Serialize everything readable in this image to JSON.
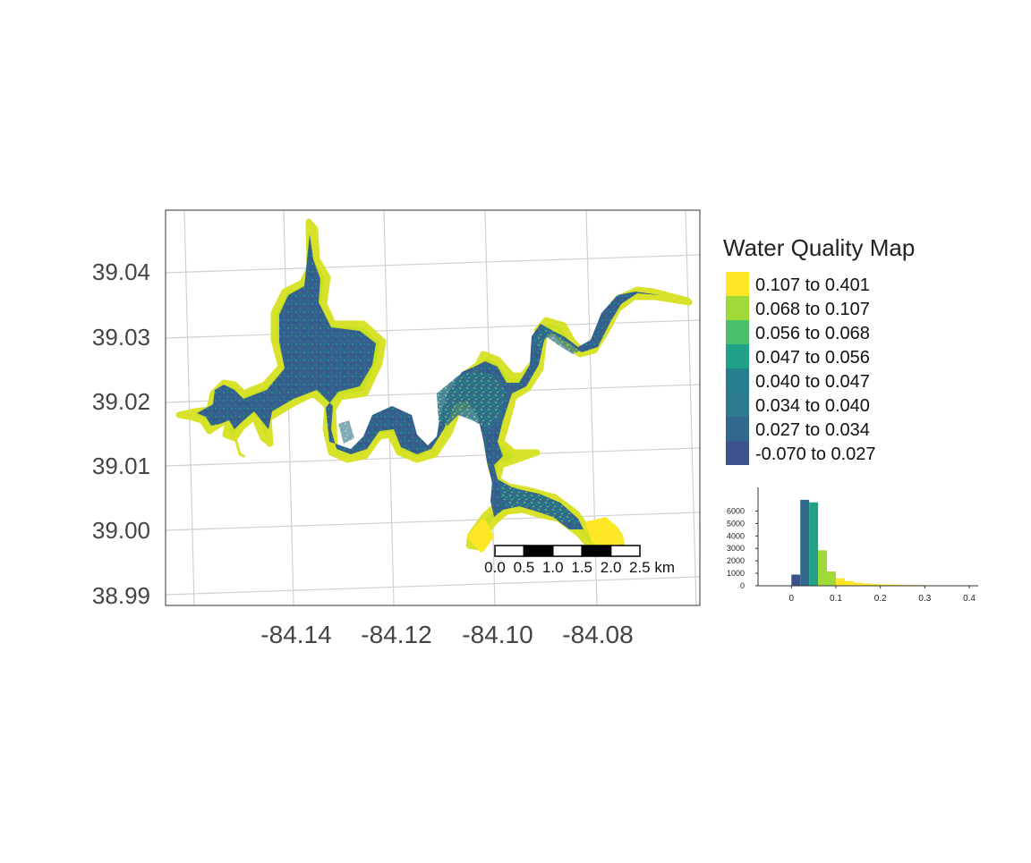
{
  "map": {
    "lon_ticks": [
      "-84.14",
      "-84.12",
      "-84.10",
      "-84.08"
    ],
    "lat_ticks": [
      "39.04",
      "39.03",
      "39.02",
      "39.01",
      "39.00",
      "38.99"
    ],
    "grid_color": "#d0d0d0",
    "scale_bar": {
      "labels": [
        "0.0",
        "0.5",
        "1.0",
        "1.5",
        "2.0",
        "2.5 km"
      ]
    }
  },
  "legend": {
    "title": "Water Quality Map",
    "items": [
      {
        "label": "0.107 to 0.401",
        "color": "#fde725"
      },
      {
        "label": "0.068 to 0.107",
        "color": "#a0da39"
      },
      {
        "label": "0.056 to 0.068",
        "color": "#4ac16d"
      },
      {
        "label": "0.047 to 0.056",
        "color": "#1fa187"
      },
      {
        "label": "0.040 to 0.047",
        "color": "#277f8e"
      },
      {
        "label": "0.034 to 0.040",
        "color": "#2b7b8c"
      },
      {
        "label": "0.027 to 0.034",
        "color": "#31688e"
      },
      {
        "label": "-0.070 to 0.027",
        "color": "#3b528b"
      }
    ]
  },
  "chart_data": {
    "type": "bar",
    "title": "",
    "xlabel": "",
    "ylabel": "",
    "x_ticks": [
      "0",
      "0.1",
      "0.2",
      "0.3",
      "0.4"
    ],
    "y_ticks": [
      "0",
      "1000",
      "2000",
      "3000",
      "4000",
      "5000",
      "6000"
    ],
    "xlim": [
      -0.075,
      0.42
    ],
    "ylim": [
      0,
      7900
    ],
    "bins": [
      {
        "x0": 0.0,
        "x1": 0.02,
        "count": 900,
        "color": "#3b528b"
      },
      {
        "x0": 0.02,
        "x1": 0.04,
        "count": 6900,
        "color": "#31688e"
      },
      {
        "x0": 0.04,
        "x1": 0.06,
        "count": 6700,
        "color": "#1fa187"
      },
      {
        "x0": 0.06,
        "x1": 0.08,
        "count": 2850,
        "color": "#a0da39"
      },
      {
        "x0": 0.08,
        "x1": 0.1,
        "count": 1150,
        "color": "#a0da39"
      },
      {
        "x0": 0.1,
        "x1": 0.12,
        "count": 600,
        "color": "#fde725"
      },
      {
        "x0": 0.12,
        "x1": 0.14,
        "count": 380,
        "color": "#fde725"
      },
      {
        "x0": 0.14,
        "x1": 0.16,
        "count": 250,
        "color": "#fde725"
      },
      {
        "x0": 0.16,
        "x1": 0.18,
        "count": 180,
        "color": "#fde725"
      },
      {
        "x0": 0.18,
        "x1": 0.2,
        "count": 140,
        "color": "#fde725"
      },
      {
        "x0": 0.2,
        "x1": 0.22,
        "count": 110,
        "color": "#fde725"
      },
      {
        "x0": 0.22,
        "x1": 0.24,
        "count": 90,
        "color": "#fde725"
      },
      {
        "x0": 0.24,
        "x1": 0.26,
        "count": 70,
        "color": "#fde725"
      },
      {
        "x0": 0.26,
        "x1": 0.28,
        "count": 60,
        "color": "#fde725"
      },
      {
        "x0": 0.28,
        "x1": 0.3,
        "count": 50,
        "color": "#fde725"
      },
      {
        "x0": 0.3,
        "x1": 0.32,
        "count": 45,
        "color": "#fde725"
      },
      {
        "x0": 0.32,
        "x1": 0.34,
        "count": 40,
        "color": "#fde725"
      },
      {
        "x0": 0.34,
        "x1": 0.36,
        "count": 30,
        "color": "#fde725"
      },
      {
        "x0": 0.36,
        "x1": 0.38,
        "count": 20,
        "color": "#fde725"
      },
      {
        "x0": 0.38,
        "x1": 0.4,
        "count": 12,
        "color": "#fde725"
      }
    ]
  }
}
